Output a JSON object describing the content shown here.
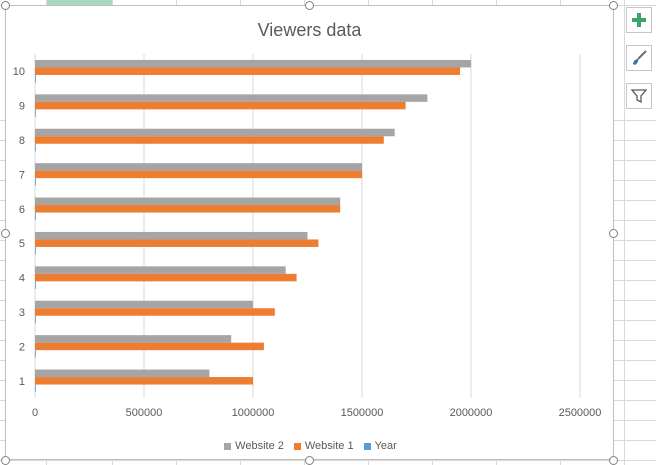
{
  "chart_data": {
    "type": "bar",
    "orientation": "horizontal",
    "title": "Viewers data",
    "categories": [
      "1",
      "2",
      "3",
      "4",
      "5",
      "6",
      "7",
      "8",
      "9",
      "10"
    ],
    "series": [
      {
        "name": "Website 2",
        "color": "#a5a5a5",
        "values": [
          800000,
          900000,
          1000000,
          1150000,
          1250000,
          1400000,
          1500000,
          1650000,
          1800000,
          2000000
        ]
      },
      {
        "name": "Website 1",
        "color": "#ed7d31",
        "values": [
          1000000,
          1050000,
          1100000,
          1200000,
          1300000,
          1400000,
          1500000,
          1600000,
          1700000,
          1950000
        ]
      },
      {
        "name": "Year",
        "color": "#5b9bd5",
        "values": [
          1,
          2,
          3,
          4,
          5,
          6,
          7,
          8,
          9,
          10
        ]
      }
    ],
    "xlim": [
      0,
      2500000
    ],
    "xticks": [
      "0",
      "500000",
      "1000000",
      "1500000",
      "2000000",
      "2500000"
    ],
    "xlabel": "",
    "ylabel": "",
    "grid": true,
    "legend_position": "bottom"
  },
  "side_buttons": {
    "add_icon": "plus-icon",
    "style_icon": "brush-icon",
    "filter_icon": "filter-icon"
  }
}
